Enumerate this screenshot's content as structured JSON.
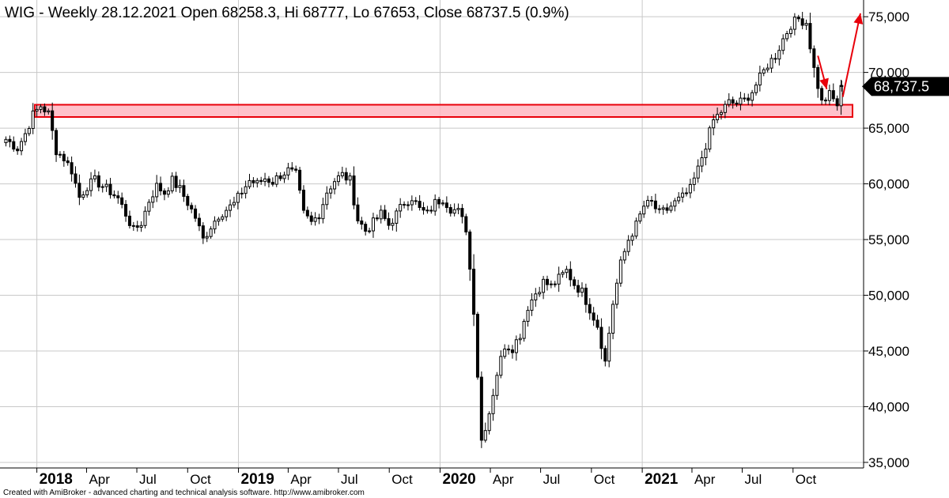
{
  "title": "WIG - Weekly 28.12.2021 Open 68258.3, Hi 68777, Lo 67653, Close 68737.5 (0.9%)",
  "footer": "Created with AmiBroker - advanced charting and technical analysis software. http://www.amibroker.com",
  "colors": {
    "candle": "#000000",
    "grid": "#c8c8c8",
    "zone_fill": "#ffb6c1",
    "zone_stroke": "#e8000b",
    "arrow": "#e8000b",
    "price_tag": "#000000"
  },
  "chart_data": {
    "type": "candlestick",
    "title": "WIG - Weekly 28.12.2021 Open 68258.3, Hi 68777, Lo 67653, Close 68737.5 (0.9%)",
    "ylim": [
      34500,
      76500
    ],
    "grid": "horizontal",
    "y_ticks": [
      {
        "value": 35000,
        "label": "35,000"
      },
      {
        "value": 40000,
        "label": "40,000"
      },
      {
        "value": 45000,
        "label": "45,000"
      },
      {
        "value": 50000,
        "label": "50,000"
      },
      {
        "value": 55000,
        "label": "55,000"
      },
      {
        "value": 60000,
        "label": "60,000"
      },
      {
        "value": 65000,
        "label": "65,000"
      },
      {
        "value": 70000,
        "label": "70,000"
      },
      {
        "value": 75000,
        "label": "75,000"
      }
    ],
    "x_ticks": [
      {
        "date": "2018-01-01",
        "label": "2018",
        "year": true
      },
      {
        "date": "2018-04-01",
        "label": "Apr",
        "year": false
      },
      {
        "date": "2018-07-01",
        "label": "Jul",
        "year": false
      },
      {
        "date": "2018-10-01",
        "label": "Oct",
        "year": false
      },
      {
        "date": "2019-01-01",
        "label": "2019",
        "year": true
      },
      {
        "date": "2019-04-01",
        "label": "Apr",
        "year": false
      },
      {
        "date": "2019-07-01",
        "label": "Jul",
        "year": false
      },
      {
        "date": "2019-10-01",
        "label": "Oct",
        "year": false
      },
      {
        "date": "2020-01-01",
        "label": "2020",
        "year": true
      },
      {
        "date": "2020-04-01",
        "label": "Apr",
        "year": false
      },
      {
        "date": "2020-07-01",
        "label": "Jul",
        "year": false
      },
      {
        "date": "2020-10-01",
        "label": "Oct",
        "year": false
      },
      {
        "date": "2021-01-01",
        "label": "2021",
        "year": true
      },
      {
        "date": "2021-04-01",
        "label": "Apr",
        "year": false
      },
      {
        "date": "2021-07-01",
        "label": "Jul",
        "year": false
      },
      {
        "date": "2021-10-01",
        "label": "Oct",
        "year": false
      }
    ],
    "last_price": {
      "value": 68737.5,
      "label": "68,737.5"
    },
    "zone": {
      "low": 66000,
      "high": 67100,
      "start": "2017-11-01",
      "end": "2022-01-31"
    },
    "arrows": [
      {
        "from_date": "2021-11-15",
        "from_value": 71500,
        "to_date": "2021-12-01",
        "to_value": 68500
      },
      {
        "from_date": "2021-12-30",
        "from_value": 67800,
        "to_date": "2022-01-31",
        "to_value": 75300
      }
    ],
    "weekly_close": [
      {
        "date": "2017-11-06",
        "close": 64000
      },
      {
        "date": "2017-11-27",
        "close": 63200
      },
      {
        "date": "2017-12-11",
        "close": 64500
      },
      {
        "date": "2017-12-25",
        "close": 66200
      },
      {
        "date": "2018-01-08",
        "close": 67000
      },
      {
        "date": "2018-01-22",
        "close": 66300
      },
      {
        "date": "2018-02-05",
        "close": 63000
      },
      {
        "date": "2018-02-19",
        "close": 62300
      },
      {
        "date": "2018-03-05",
        "close": 61200
      },
      {
        "date": "2018-03-19",
        "close": 58800
      },
      {
        "date": "2018-04-02",
        "close": 59800
      },
      {
        "date": "2018-04-16",
        "close": 60300
      },
      {
        "date": "2018-04-30",
        "close": 59800
      },
      {
        "date": "2018-05-14",
        "close": 59300
      },
      {
        "date": "2018-05-28",
        "close": 58700
      },
      {
        "date": "2018-06-11",
        "close": 57300
      },
      {
        "date": "2018-06-25",
        "close": 55800
      },
      {
        "date": "2018-07-09",
        "close": 56500
      },
      {
        "date": "2018-07-23",
        "close": 58500
      },
      {
        "date": "2018-08-06",
        "close": 59800
      },
      {
        "date": "2018-08-20",
        "close": 59200
      },
      {
        "date": "2018-09-03",
        "close": 60300
      },
      {
        "date": "2018-09-17",
        "close": 59500
      },
      {
        "date": "2018-10-01",
        "close": 58300
      },
      {
        "date": "2018-10-15",
        "close": 57000
      },
      {
        "date": "2018-10-29",
        "close": 55000
      },
      {
        "date": "2018-11-12",
        "close": 56200
      },
      {
        "date": "2018-11-26",
        "close": 57200
      },
      {
        "date": "2018-12-10",
        "close": 57700
      },
      {
        "date": "2018-12-24",
        "close": 58200
      },
      {
        "date": "2019-01-07",
        "close": 59300
      },
      {
        "date": "2019-01-21",
        "close": 60300
      },
      {
        "date": "2019-02-04",
        "close": 60000
      },
      {
        "date": "2019-02-18",
        "close": 60500
      },
      {
        "date": "2019-03-04",
        "close": 60200
      },
      {
        "date": "2019-03-18",
        "close": 60800
      },
      {
        "date": "2019-04-01",
        "close": 61200
      },
      {
        "date": "2019-04-15",
        "close": 60800
      },
      {
        "date": "2019-04-29",
        "close": 57300
      },
      {
        "date": "2019-05-13",
        "close": 56500
      },
      {
        "date": "2019-05-27",
        "close": 57300
      },
      {
        "date": "2019-06-10",
        "close": 59300
      },
      {
        "date": "2019-06-24",
        "close": 60300
      },
      {
        "date": "2019-07-08",
        "close": 60800
      },
      {
        "date": "2019-07-22",
        "close": 60300
      },
      {
        "date": "2019-08-05",
        "close": 56800
      },
      {
        "date": "2019-08-19",
        "close": 55800
      },
      {
        "date": "2019-09-02",
        "close": 56500
      },
      {
        "date": "2019-09-16",
        "close": 57300
      },
      {
        "date": "2019-09-30",
        "close": 56300
      },
      {
        "date": "2019-10-14",
        "close": 57300
      },
      {
        "date": "2019-10-28",
        "close": 58300
      },
      {
        "date": "2019-11-11",
        "close": 58800
      },
      {
        "date": "2019-11-25",
        "close": 57700
      },
      {
        "date": "2019-12-09",
        "close": 57300
      },
      {
        "date": "2019-12-23",
        "close": 58300
      },
      {
        "date": "2020-01-06",
        "close": 58700
      },
      {
        "date": "2020-01-20",
        "close": 57800
      },
      {
        "date": "2020-02-03",
        "close": 57500
      },
      {
        "date": "2020-02-17",
        "close": 56000
      },
      {
        "date": "2020-03-02",
        "close": 48700
      },
      {
        "date": "2020-03-16",
        "close": 37000
      },
      {
        "date": "2020-03-30",
        "close": 39500
      },
      {
        "date": "2020-04-13",
        "close": 43000
      },
      {
        "date": "2020-04-27",
        "close": 45500
      },
      {
        "date": "2020-05-11",
        "close": 45300
      },
      {
        "date": "2020-05-25",
        "close": 46500
      },
      {
        "date": "2020-06-08",
        "close": 49000
      },
      {
        "date": "2020-06-22",
        "close": 50200
      },
      {
        "date": "2020-07-06",
        "close": 51200
      },
      {
        "date": "2020-07-20",
        "close": 50800
      },
      {
        "date": "2020-08-03",
        "close": 51500
      },
      {
        "date": "2020-08-17",
        "close": 52200
      },
      {
        "date": "2020-08-31",
        "close": 51000
      },
      {
        "date": "2020-09-14",
        "close": 50300
      },
      {
        "date": "2020-09-28",
        "close": 48800
      },
      {
        "date": "2020-10-12",
        "close": 47300
      },
      {
        "date": "2020-10-26",
        "close": 44000
      },
      {
        "date": "2020-11-09",
        "close": 49300
      },
      {
        "date": "2020-11-23",
        "close": 52800
      },
      {
        "date": "2020-12-07",
        "close": 55000
      },
      {
        "date": "2020-12-21",
        "close": 56300
      },
      {
        "date": "2021-01-04",
        "close": 58000
      },
      {
        "date": "2021-01-18",
        "close": 58300
      },
      {
        "date": "2021-02-01",
        "close": 57300
      },
      {
        "date": "2021-02-15",
        "close": 57700
      },
      {
        "date": "2021-03-01",
        "close": 58300
      },
      {
        "date": "2021-03-15",
        "close": 58800
      },
      {
        "date": "2021-03-29",
        "close": 59500
      },
      {
        "date": "2021-04-12",
        "close": 61300
      },
      {
        "date": "2021-04-26",
        "close": 63500
      },
      {
        "date": "2021-05-10",
        "close": 65700
      },
      {
        "date": "2021-05-24",
        "close": 66500
      },
      {
        "date": "2021-06-07",
        "close": 67300
      },
      {
        "date": "2021-06-21",
        "close": 67200
      },
      {
        "date": "2021-07-05",
        "close": 67500
      },
      {
        "date": "2021-07-19",
        "close": 68300
      },
      {
        "date": "2021-08-02",
        "close": 69500
      },
      {
        "date": "2021-08-16",
        "close": 70700
      },
      {
        "date": "2021-08-30",
        "close": 71500
      },
      {
        "date": "2021-09-13",
        "close": 73000
      },
      {
        "date": "2021-09-27",
        "close": 74300
      },
      {
        "date": "2021-10-11",
        "close": 74800
      },
      {
        "date": "2021-10-25",
        "close": 74500
      },
      {
        "date": "2021-11-08",
        "close": 70300
      },
      {
        "date": "2021-11-22",
        "close": 67300
      },
      {
        "date": "2021-12-06",
        "close": 68000
      },
      {
        "date": "2021-12-20",
        "close": 67100
      },
      {
        "date": "2021-12-28",
        "close": 68737.5
      }
    ]
  }
}
